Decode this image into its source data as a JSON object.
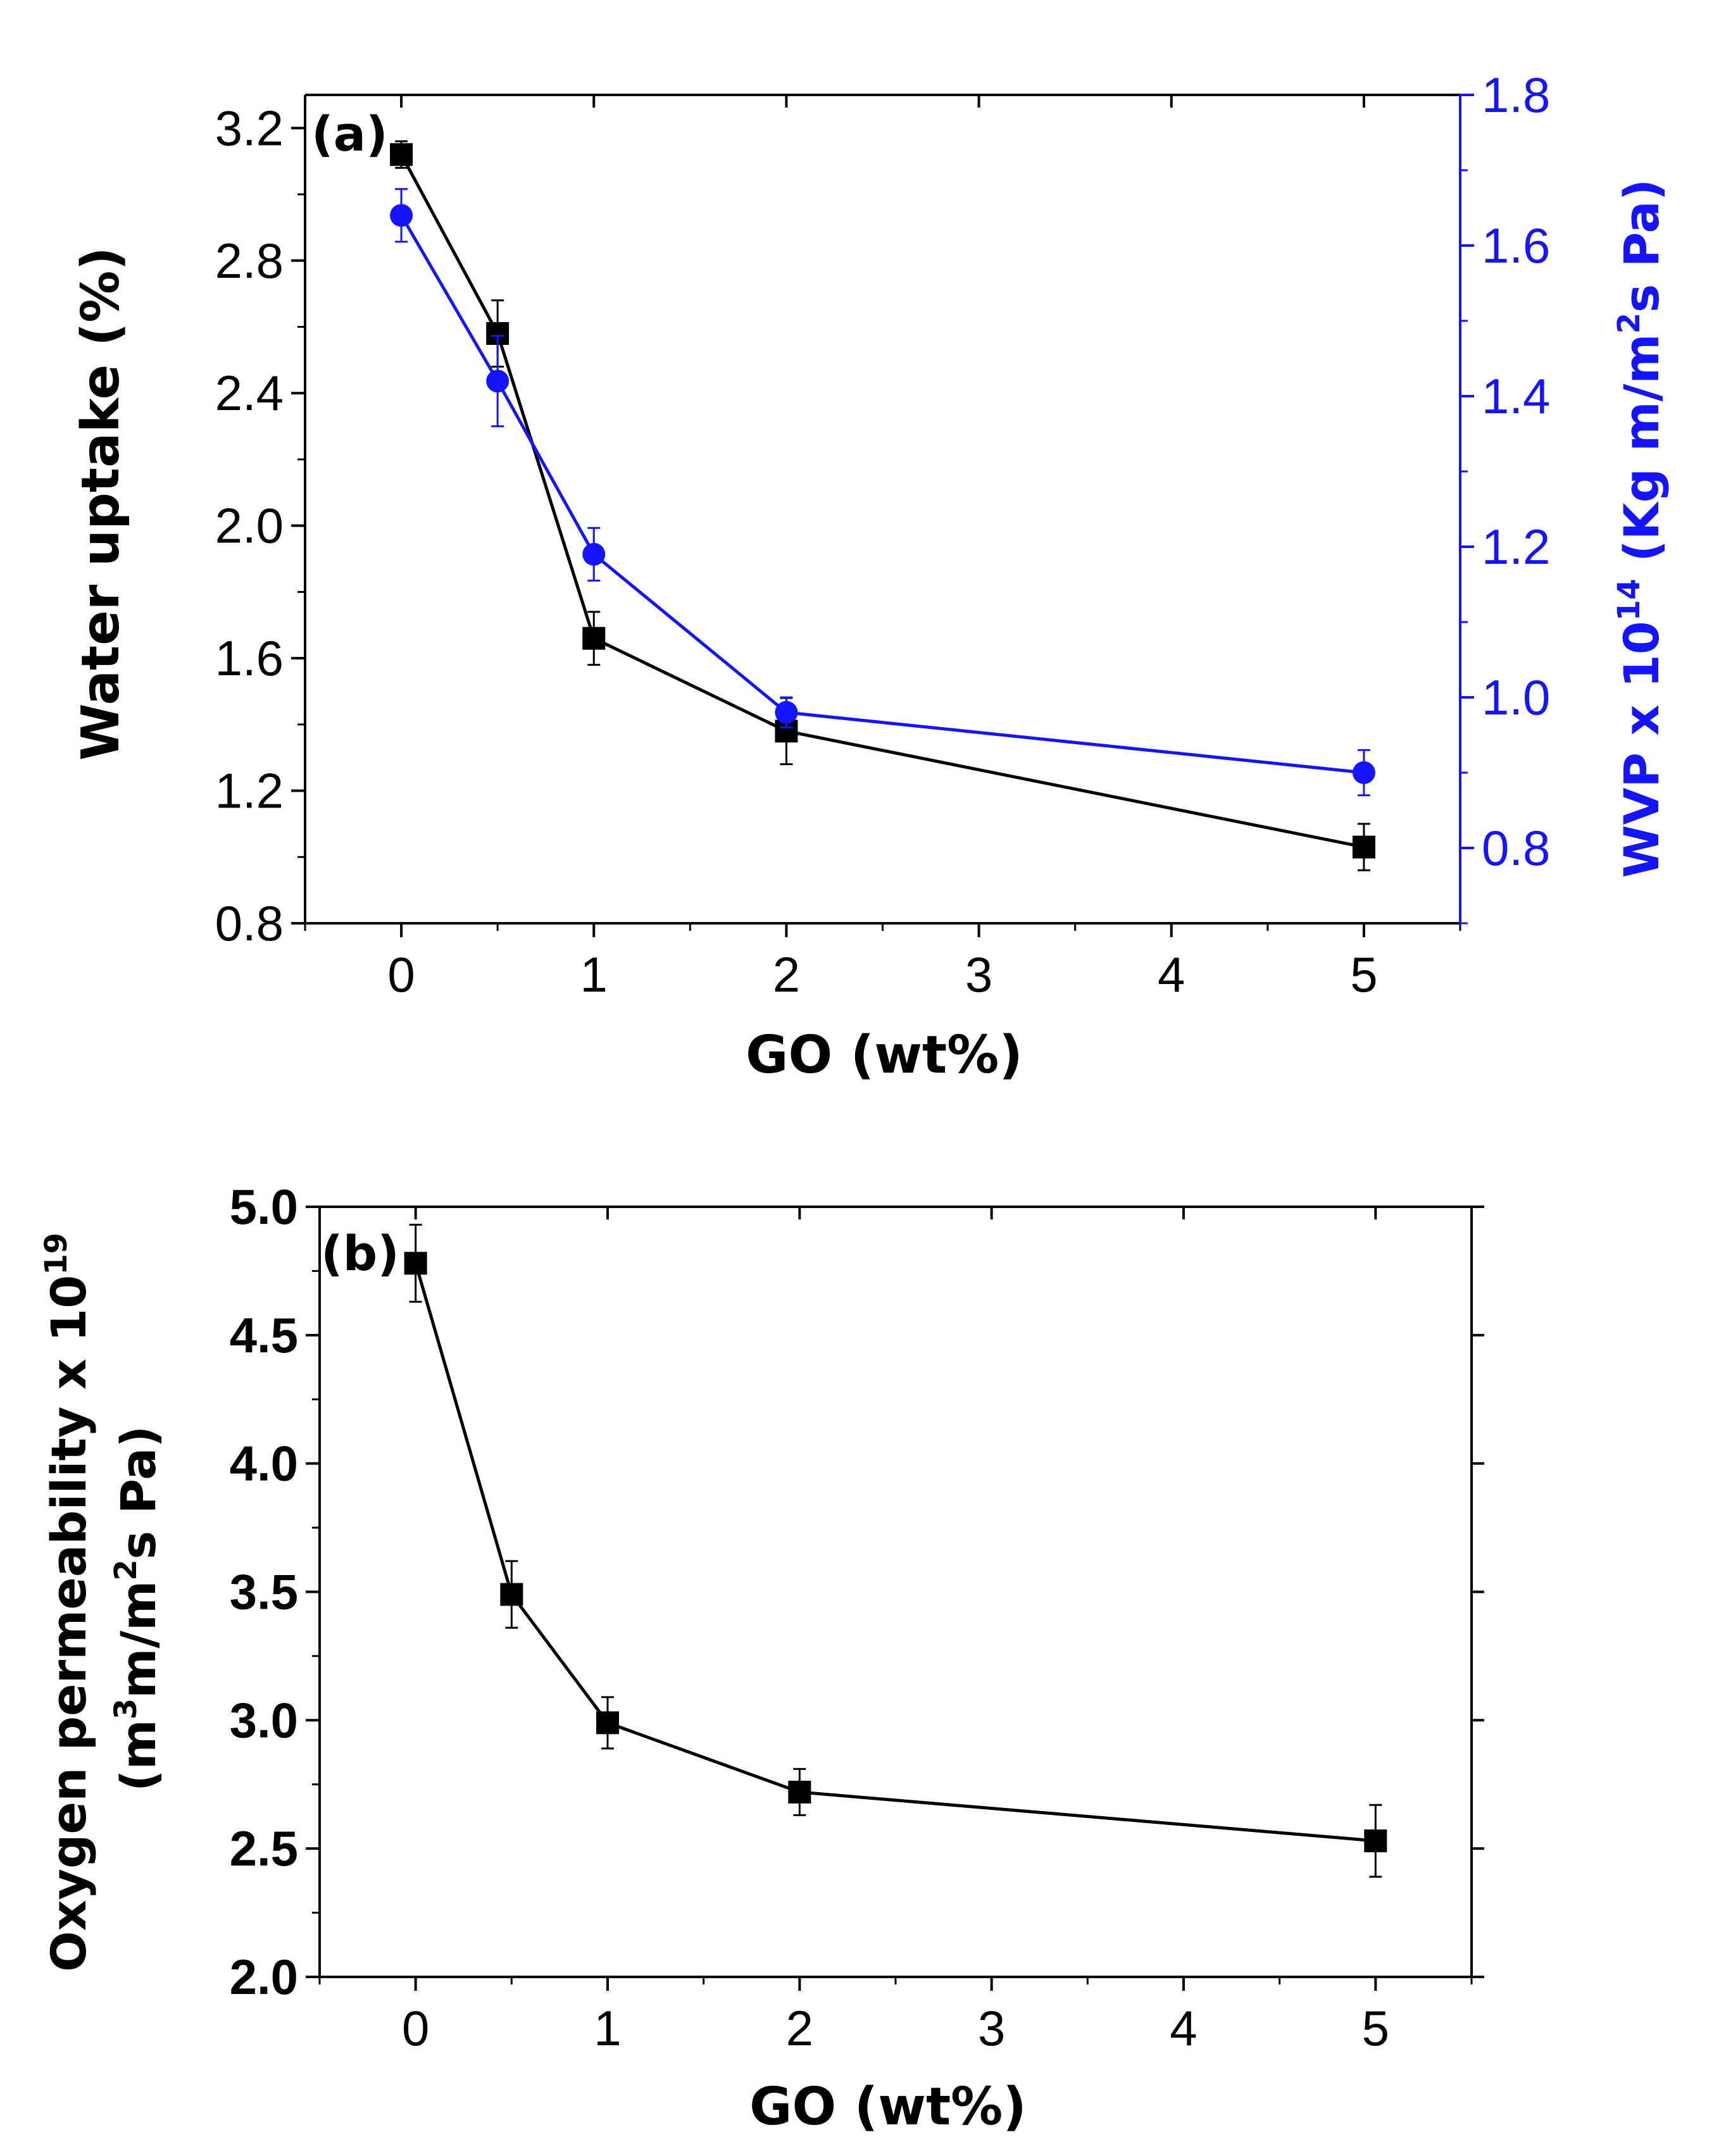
{
  "colors": {
    "primary": "#000000",
    "secondary": "#1414ff"
  },
  "chart_data": [
    {
      "type": "line",
      "panel_label": "(a)",
      "xlabel": "GO (wt%)",
      "ylabel": "Water uptake (%)",
      "y2label": {
        "main": "WVP x 10",
        "exp": "14",
        "unit_pre": " (Kg m/m",
        "unit_exp": "2",
        "unit_post": "s Pa)"
      },
      "xlim": [
        -0.5,
        5.5
      ],
      "ylim": [
        0.8,
        3.3
      ],
      "y2lim": [
        0.7,
        1.8
      ],
      "xticks": [
        "0",
        "1",
        "2",
        "3",
        "4",
        "5"
      ],
      "yticks": [
        "0.8",
        "1.2",
        "1.6",
        "2.0",
        "2.4",
        "2.8",
        "3.2"
      ],
      "y2ticks": [
        "0.8",
        "1.0",
        "1.2",
        "1.4",
        "1.6",
        "1.8"
      ],
      "x": [
        0,
        0.5,
        1,
        2,
        5
      ],
      "series": [
        {
          "axis": "left",
          "marker": "square",
          "values": [
            3.12,
            2.58,
            1.66,
            1.38,
            1.03
          ],
          "errors": [
            0.04,
            0.1,
            0.08,
            0.1,
            0.07
          ]
        },
        {
          "axis": "right",
          "marker": "circle",
          "values": [
            1.64,
            1.42,
            1.19,
            0.98,
            0.9
          ],
          "errors": [
            0.035,
            0.06,
            0.035,
            0.02,
            0.03
          ]
        }
      ]
    },
    {
      "type": "line",
      "panel_label": "(b)",
      "xlabel": "GO (wt%)",
      "ylabel": {
        "line1_main": "Oxygen permeability x 10",
        "line1_exp": "19",
        "line2_a": "(m",
        "line2_exp1": "3",
        "line2_b": "m/m",
        "line2_exp2": "2",
        "line2_c": "s Pa)"
      },
      "xlim": [
        -0.5,
        5.5
      ],
      "ylim": [
        2.0,
        5.0
      ],
      "xticks": [
        "0",
        "1",
        "2",
        "3",
        "4",
        "5"
      ],
      "yticks": [
        "2.0",
        "2.5",
        "3.0",
        "3.5",
        "4.0",
        "4.5",
        "5.0"
      ],
      "x": [
        0,
        0.5,
        1,
        2,
        5
      ],
      "series": [
        {
          "axis": "left",
          "marker": "square",
          "values": [
            4.78,
            3.49,
            2.99,
            2.72,
            2.53
          ],
          "errors": [
            0.15,
            0.13,
            0.1,
            0.09,
            0.14
          ]
        }
      ]
    }
  ]
}
